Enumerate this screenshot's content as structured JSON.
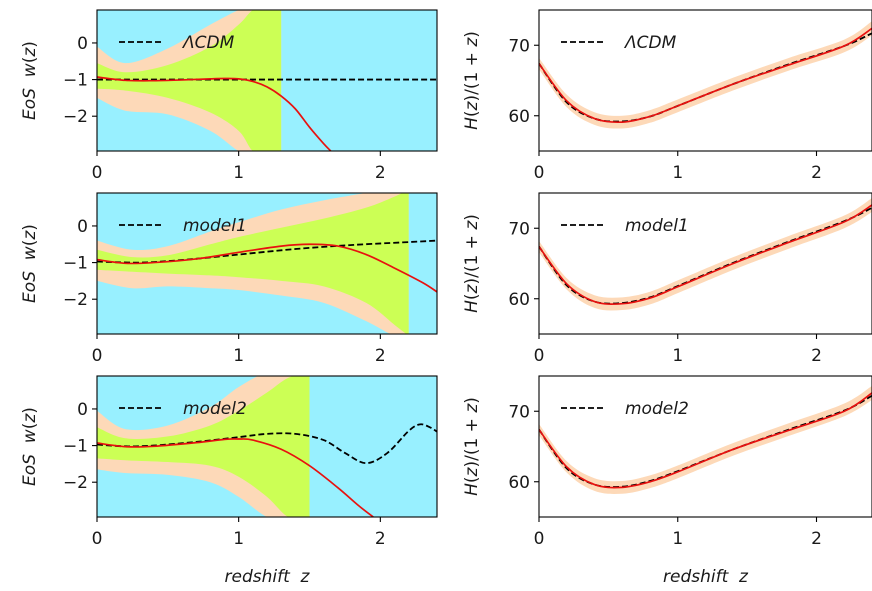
{
  "chart_data": [
    {
      "id": "w-lcdm",
      "type": "area",
      "ylabel": "EoS  w(z)",
      "xlabel": "",
      "xlim": [
        0,
        2.4
      ],
      "ylim": [
        -2.95,
        0.9
      ],
      "xticks": [
        0,
        1,
        2
      ],
      "yticks": [
        0,
        -1,
        -2
      ],
      "legend": {
        "label": "ΛCDM",
        "placement": "top-left"
      },
      "background": "#98f0ff",
      "bands": [
        {
          "name": "2-sigma",
          "color": "#fdd9b8",
          "x": [
            0,
            0.2,
            0.5,
            0.8,
            1.0,
            1.1,
            1.2,
            1.3
          ],
          "upper": [
            -0.1,
            -0.55,
            -0.15,
            0.5,
            0.9,
            1.0,
            1.0,
            1.0
          ],
          "lower": [
            -1.5,
            -1.85,
            -1.95,
            -2.4,
            -2.95,
            -3.0,
            -3.0,
            -3.0
          ]
        },
        {
          "name": "1-sigma",
          "color": "#ccff55",
          "x": [
            0,
            0.2,
            0.5,
            0.8,
            1.0,
            1.1,
            1.2,
            1.3
          ],
          "upper": [
            -0.55,
            -0.8,
            -0.6,
            -0.1,
            0.5,
            0.9,
            1.0,
            1.0
          ],
          "lower": [
            -1.25,
            -1.3,
            -1.5,
            -1.9,
            -2.4,
            -2.95,
            -3.0,
            -3.0
          ]
        }
      ],
      "series": [
        {
          "name": "ΛCDM",
          "style": "dashed",
          "color": "#000000",
          "x": [
            0,
            2.4
          ],
          "y": [
            -1.0,
            -1.0
          ]
        },
        {
          "style": "solid",
          "color": "#e8110f",
          "x": [
            0,
            0.2,
            0.4,
            0.6,
            0.8,
            0.9,
            1.0,
            1.1,
            1.2,
            1.3,
            1.4,
            1.5,
            1.6,
            1.65
          ],
          "y": [
            -0.93,
            -1.02,
            -1.03,
            -1.01,
            -0.98,
            -0.97,
            -0.98,
            -1.05,
            -1.2,
            -1.45,
            -1.8,
            -2.3,
            -2.75,
            -2.95
          ]
        }
      ]
    },
    {
      "id": "h-lcdm",
      "type": "line",
      "ylabel": "H(z)/(1 + z)",
      "xlabel": "",
      "xlim": [
        0,
        2.4
      ],
      "ylim": [
        55,
        75
      ],
      "xticks": [
        0,
        1,
        2
      ],
      "yticks": [
        60,
        70
      ],
      "legend": {
        "label": "ΛCDM",
        "placement": "top-left"
      },
      "bands": [
        {
          "name": "band",
          "color": "#fdd9b8",
          "x": [
            0,
            0.2,
            0.4,
            0.6,
            0.8,
            1.0,
            1.4,
            1.8,
            2.2,
            2.4
          ],
          "upper": [
            68.2,
            63.0,
            60.5,
            60.0,
            60.8,
            62.3,
            65.4,
            68.2,
            70.8,
            73.4
          ],
          "lower": [
            66.6,
            61.2,
            58.7,
            58.2,
            59.0,
            60.5,
            63.6,
            66.4,
            69.0,
            71.4
          ]
        }
      ],
      "series": [
        {
          "name": "ΛCDM",
          "style": "dashed",
          "color": "#000000",
          "x": [
            0,
            0.2,
            0.4,
            0.6,
            0.8,
            1.0,
            1.4,
            1.8,
            2.2,
            2.4
          ],
          "y": [
            67.4,
            61.9,
            59.6,
            59.2,
            59.9,
            61.4,
            64.5,
            67.3,
            69.9,
            71.7
          ]
        },
        {
          "style": "solid",
          "color": "#e8110f",
          "x": [
            0,
            0.2,
            0.4,
            0.6,
            0.8,
            1.0,
            1.4,
            1.8,
            2.2,
            2.4
          ],
          "y": [
            67.4,
            62.1,
            59.6,
            59.1,
            59.9,
            61.4,
            64.5,
            67.2,
            69.9,
            72.4
          ]
        }
      ]
    },
    {
      "id": "w-model1",
      "type": "area",
      "ylabel": "EoS  w(z)",
      "xlabel": "",
      "xlim": [
        0,
        2.4
      ],
      "ylim": [
        -2.95,
        0.9
      ],
      "xticks": [
        0,
        1,
        2
      ],
      "yticks": [
        0,
        -1,
        -2
      ],
      "legend": {
        "label": "model1",
        "placement": "top-left"
      },
      "background": "#98f0ff",
      "bands": [
        {
          "name": "2-sigma",
          "color": "#fdd9b8",
          "x": [
            0,
            0.25,
            0.5,
            0.8,
            1.0,
            1.3,
            1.6,
            1.9,
            2.1,
            2.2
          ],
          "upper": [
            -0.4,
            -0.65,
            -0.55,
            -0.15,
            0.1,
            0.45,
            0.7,
            0.9,
            1.0,
            1.0
          ],
          "lower": [
            -1.5,
            -1.7,
            -1.65,
            -1.7,
            -1.75,
            -1.9,
            -2.1,
            -2.6,
            -3.0,
            -3.0
          ]
        },
        {
          "name": "1-sigma",
          "color": "#ccff55",
          "x": [
            0,
            0.25,
            0.5,
            0.8,
            1.0,
            1.3,
            1.6,
            1.9,
            2.1,
            2.2
          ],
          "upper": [
            -0.65,
            -0.85,
            -0.8,
            -0.5,
            -0.3,
            -0.05,
            0.2,
            0.5,
            0.8,
            1.0
          ],
          "lower": [
            -1.2,
            -1.25,
            -1.3,
            -1.35,
            -1.4,
            -1.5,
            -1.65,
            -2.1,
            -2.7,
            -3.0
          ]
        }
      ],
      "series": [
        {
          "name": "model1",
          "style": "dashed",
          "color": "#000000",
          "x": [
            0,
            0.3,
            0.6,
            1.0,
            1.4,
            1.8,
            2.2,
            2.4
          ],
          "y": [
            -0.97,
            -1.0,
            -0.93,
            -0.78,
            -0.63,
            -0.52,
            -0.44,
            -0.4
          ]
        },
        {
          "style": "solid",
          "color": "#e8110f",
          "x": [
            0,
            0.2,
            0.4,
            0.7,
            1.0,
            1.3,
            1.5,
            1.7,
            1.9,
            2.1,
            2.3,
            2.4
          ],
          "y": [
            -0.92,
            -1.02,
            -1.0,
            -0.9,
            -0.72,
            -0.55,
            -0.5,
            -0.55,
            -0.78,
            -1.15,
            -1.55,
            -1.8
          ]
        }
      ]
    },
    {
      "id": "h-model1",
      "type": "line",
      "ylabel": "H(z)/(1 + z)",
      "xlabel": "",
      "xlim": [
        0,
        2.4
      ],
      "ylim": [
        55,
        75
      ],
      "xticks": [
        0,
        1,
        2
      ],
      "yticks": [
        60,
        70
      ],
      "legend": {
        "label": "model1",
        "placement": "top-left"
      },
      "bands": [
        {
          "name": "band",
          "color": "#fdd9b8",
          "x": [
            0,
            0.2,
            0.4,
            0.6,
            0.8,
            1.0,
            1.4,
            1.8,
            2.2,
            2.4
          ],
          "upper": [
            68.2,
            62.9,
            60.5,
            60.2,
            61.0,
            62.6,
            65.9,
            68.9,
            71.8,
            74.3
          ],
          "lower": [
            66.6,
            61.3,
            58.7,
            58.4,
            59.2,
            60.8,
            64.1,
            67.1,
            70.0,
            72.3
          ]
        }
      ],
      "series": [
        {
          "name": "model1",
          "style": "dashed",
          "color": "#000000",
          "x": [
            0,
            0.2,
            0.4,
            0.6,
            0.8,
            1.0,
            1.4,
            1.8,
            2.2,
            2.4
          ],
          "y": [
            67.4,
            61.9,
            59.6,
            59.4,
            60.2,
            61.8,
            65.1,
            68.1,
            71.0,
            72.9
          ]
        },
        {
          "style": "solid",
          "color": "#e8110f",
          "x": [
            0,
            0.2,
            0.4,
            0.6,
            0.8,
            1.0,
            1.4,
            1.8,
            2.2,
            2.4
          ],
          "y": [
            67.4,
            62.1,
            59.6,
            59.3,
            60.1,
            61.7,
            65.0,
            68.0,
            70.9,
            73.3
          ]
        }
      ]
    },
    {
      "id": "w-model2",
      "type": "area",
      "ylabel": "EoS  w(z)",
      "xlabel": "redshift  z",
      "xlim": [
        0,
        2.4
      ],
      "ylim": [
        -2.95,
        0.9
      ],
      "xticks": [
        0,
        1,
        2
      ],
      "yticks": [
        0,
        -1,
        -2
      ],
      "legend": {
        "label": "model2",
        "placement": "top-left"
      },
      "background": "#98f0ff",
      "bands": [
        {
          "name": "2-sigma",
          "color": "#fdd9b8",
          "x": [
            0,
            0.2,
            0.5,
            0.8,
            1.0,
            1.2,
            1.35,
            1.5
          ],
          "upper": [
            -0.05,
            -0.55,
            -0.45,
            0.05,
            0.6,
            1.0,
            1.0,
            1.0
          ],
          "lower": [
            -1.65,
            -1.75,
            -1.8,
            -2.0,
            -2.4,
            -2.95,
            -3.0,
            -3.0
          ]
        },
        {
          "name": "1-sigma",
          "color": "#ccff55",
          "x": [
            0,
            0.2,
            0.5,
            0.8,
            1.0,
            1.2,
            1.35,
            1.5
          ],
          "upper": [
            -0.5,
            -0.8,
            -0.75,
            -0.45,
            -0.05,
            0.45,
            0.85,
            1.0
          ],
          "lower": [
            -1.35,
            -1.4,
            -1.45,
            -1.55,
            -1.85,
            -2.4,
            -2.95,
            -3.0
          ]
        }
      ],
      "series": [
        {
          "name": "model2",
          "style": "dashed",
          "color": "#000000",
          "x": [
            0,
            0.2,
            0.4,
            0.7,
            1.0,
            1.2,
            1.4,
            1.6,
            1.75,
            1.9,
            2.05,
            2.2,
            2.28,
            2.35,
            2.4
          ],
          "y": [
            -0.97,
            -1.02,
            -1.0,
            -0.9,
            -0.77,
            -0.68,
            -0.68,
            -0.85,
            -1.2,
            -1.48,
            -1.2,
            -0.6,
            -0.42,
            -0.5,
            -0.62
          ]
        },
        {
          "style": "solid",
          "color": "#e8110f",
          "x": [
            0,
            0.2,
            0.4,
            0.7,
            0.9,
            1.0,
            1.1,
            1.3,
            1.5,
            1.7,
            1.85,
            1.95
          ],
          "y": [
            -0.93,
            -1.03,
            -1.02,
            -0.92,
            -0.83,
            -0.82,
            -0.85,
            -1.1,
            -1.55,
            -2.15,
            -2.65,
            -2.95
          ]
        }
      ]
    },
    {
      "id": "h-model2",
      "type": "line",
      "ylabel": "H(z)/(1 + z)",
      "xlabel": "redshift  z",
      "xlim": [
        0,
        2.4
      ],
      "ylim": [
        55,
        75
      ],
      "xticks": [
        0,
        1,
        2
      ],
      "yticks": [
        60,
        70
      ],
      "legend": {
        "label": "model2",
        "placement": "top-left"
      },
      "bands": [
        {
          "name": "band",
          "color": "#fdd9b8",
          "x": [
            0,
            0.2,
            0.4,
            0.6,
            0.8,
            1.0,
            1.4,
            1.8,
            2.2,
            2.4
          ],
          "upper": [
            68.2,
            62.9,
            60.5,
            60.1,
            60.9,
            62.3,
            65.5,
            68.3,
            71.1,
            73.6
          ],
          "lower": [
            66.6,
            61.3,
            58.7,
            58.3,
            59.1,
            60.5,
            63.7,
            66.5,
            69.3,
            71.6
          ]
        }
      ],
      "series": [
        {
          "name": "model2",
          "style": "dashed",
          "color": "#000000",
          "x": [
            0,
            0.2,
            0.4,
            0.6,
            0.8,
            1.0,
            1.4,
            1.8,
            2.2,
            2.4
          ],
          "y": [
            67.4,
            61.9,
            59.6,
            59.3,
            60.1,
            61.5,
            64.6,
            67.4,
            70.1,
            72.2
          ]
        },
        {
          "style": "solid",
          "color": "#e8110f",
          "x": [
            0,
            0.2,
            0.4,
            0.6,
            0.8,
            1.0,
            1.4,
            1.8,
            2.2,
            2.4
          ],
          "y": [
            67.4,
            62.1,
            59.6,
            59.2,
            60.0,
            61.4,
            64.6,
            67.3,
            70.0,
            72.6
          ]
        }
      ]
    }
  ]
}
